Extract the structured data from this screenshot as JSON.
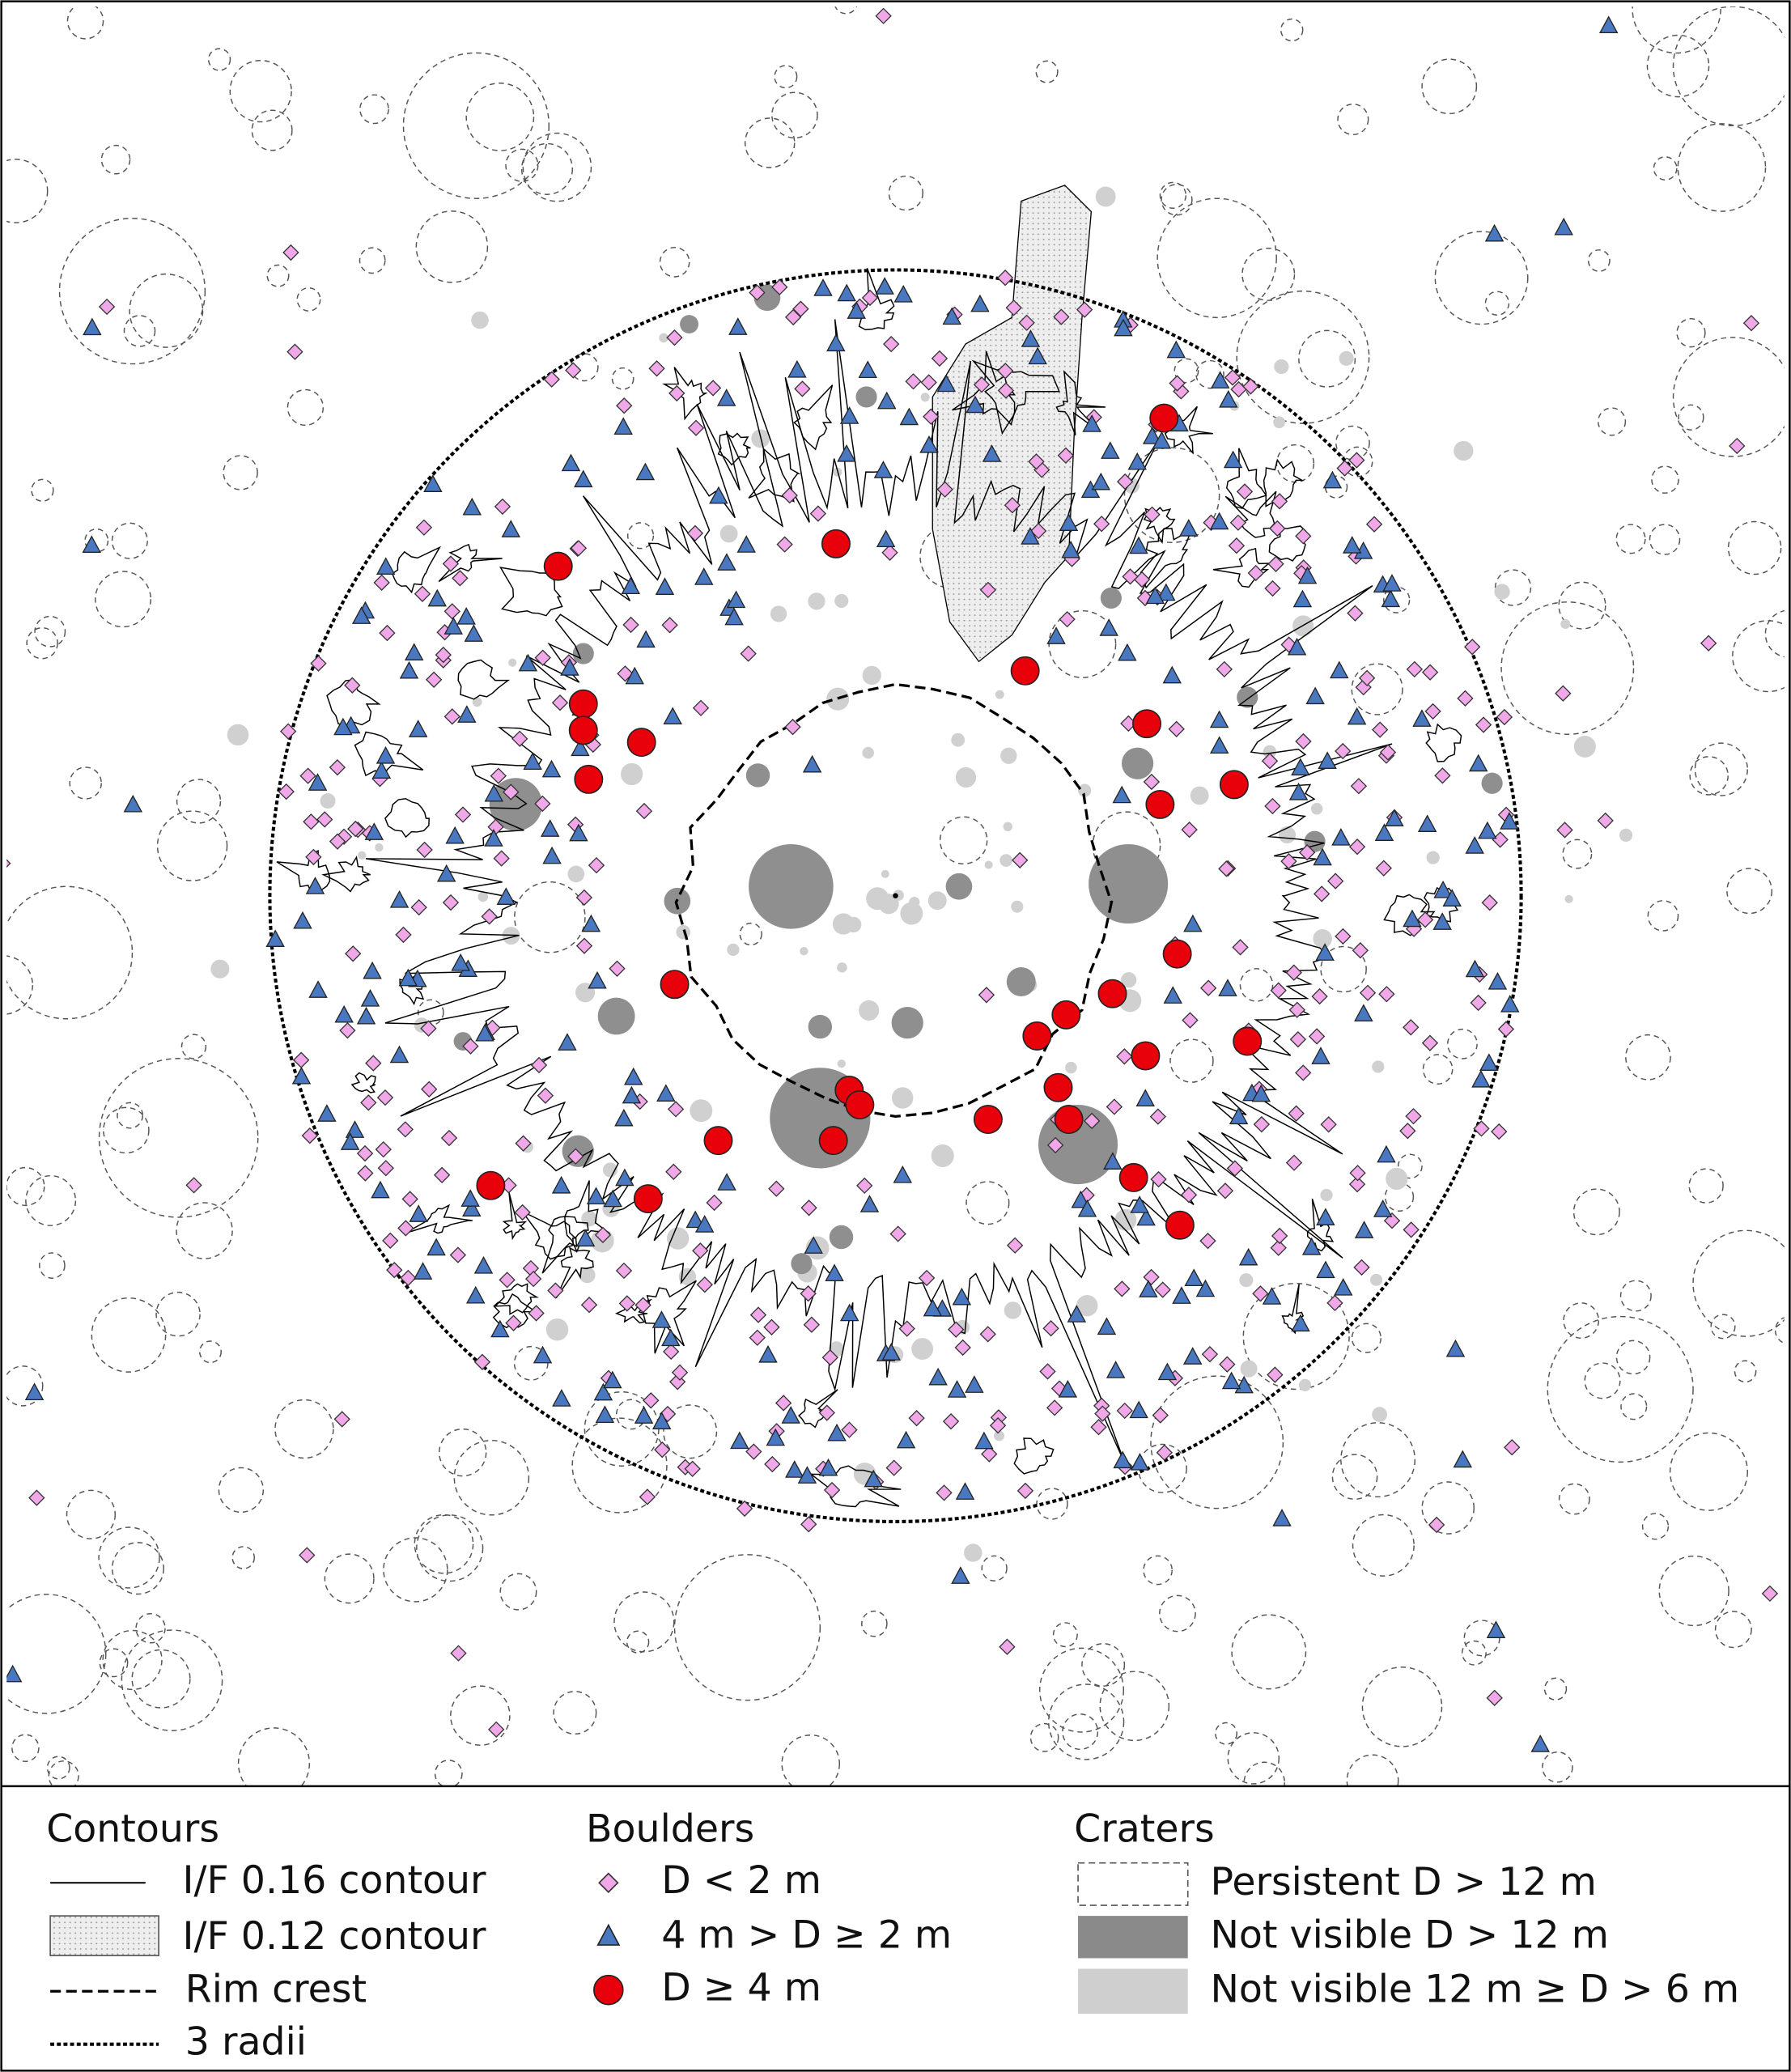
{
  "legend": {
    "contours": {
      "title": "Contours",
      "items": [
        "I/F 0.16 contour",
        "I/F 0.12 contour",
        "Rim crest",
        "3 radii"
      ]
    },
    "boulders": {
      "title": "Boulders",
      "items": [
        "D < 2 m",
        "4 m > D ≥ 2 m",
        "D ≥ 4 m"
      ]
    },
    "craters": {
      "title": "Craters",
      "items": [
        "Persistent D > 12 m",
        "Not visible D > 12 m",
        "Not visible 12 m ≥ D > 6 m"
      ]
    }
  }
}
